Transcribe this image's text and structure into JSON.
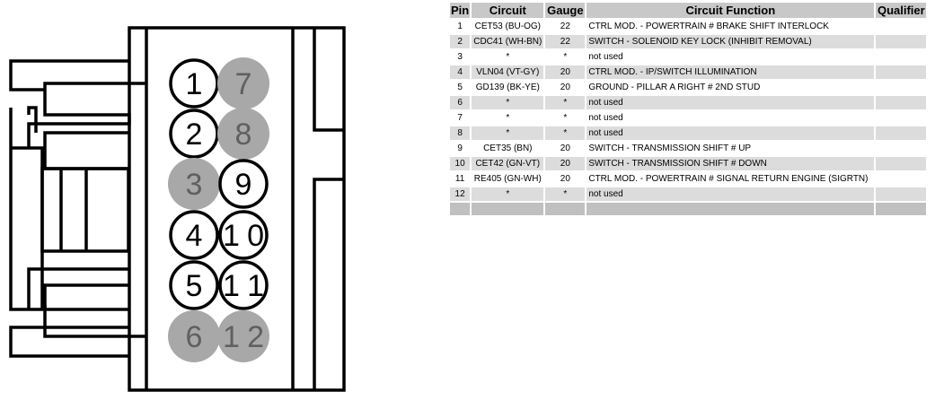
{
  "connector": {
    "pins": [
      {
        "label": "1",
        "used": true
      },
      {
        "label": "2",
        "used": true
      },
      {
        "label": "3",
        "used": false
      },
      {
        "label": "4",
        "used": true
      },
      {
        "label": "5",
        "used": true
      },
      {
        "label": "6",
        "used": false
      },
      {
        "label": "7",
        "used": false
      },
      {
        "label": "8",
        "used": false
      },
      {
        "label": "9",
        "used": true
      },
      {
        "label": "10",
        "used": true
      },
      {
        "label": "11",
        "used": true
      },
      {
        "label": "12",
        "used": false
      }
    ],
    "colors": {
      "used_fill": "#ffffff",
      "unused_fill": "#a8a8a8",
      "unused_text": "#606060",
      "outline": "#000000"
    }
  },
  "table": {
    "headers": {
      "pin": "Pin",
      "circuit": "Circuit",
      "gauge": "Gauge",
      "function": "Circuit Function",
      "qualifier": "Qualifier"
    },
    "rows": [
      {
        "pin": "1",
        "circuit": "CET53 (BU-OG)",
        "gauge": "22",
        "function": "CTRL MOD. - POWERTRAIN # BRAKE SHIFT INTERLOCK",
        "qualifier": ""
      },
      {
        "pin": "2",
        "circuit": "CDC41 (WH-BN)",
        "gauge": "22",
        "function": "SWITCH - SOLENOID KEY LOCK (INHIBIT REMOVAL)",
        "qualifier": ""
      },
      {
        "pin": "3",
        "circuit": "*",
        "gauge": "*",
        "function": "not used",
        "qualifier": ""
      },
      {
        "pin": "4",
        "circuit": "VLN04 (VT-GY)",
        "gauge": "20",
        "function": "CTRL MOD. - IP/SWITCH ILLUMINATION",
        "qualifier": ""
      },
      {
        "pin": "5",
        "circuit": "GD139 (BK-YE)",
        "gauge": "20",
        "function": "GROUND - PILLAR A RIGHT # 2ND STUD",
        "qualifier": ""
      },
      {
        "pin": "6",
        "circuit": "*",
        "gauge": "*",
        "function": "not used",
        "qualifier": ""
      },
      {
        "pin": "7",
        "circuit": "*",
        "gauge": "*",
        "function": "not used",
        "qualifier": ""
      },
      {
        "pin": "8",
        "circuit": "*",
        "gauge": "*",
        "function": "not used",
        "qualifier": ""
      },
      {
        "pin": "9",
        "circuit": "CET35 (BN)",
        "gauge": "20",
        "function": "SWITCH - TRANSMISSION SHIFT # UP",
        "qualifier": ""
      },
      {
        "pin": "10",
        "circuit": "CET42 (GN-VT)",
        "gauge": "20",
        "function": "SWITCH - TRANSMISSION SHIFT # DOWN",
        "qualifier": ""
      },
      {
        "pin": "11",
        "circuit": "RE405 (GN-WH)",
        "gauge": "20",
        "function": "CTRL MOD. - POWERTRAIN # SIGNAL RETURN ENGINE (SIGRTN)",
        "qualifier": ""
      },
      {
        "pin": "12",
        "circuit": "*",
        "gauge": "*",
        "function": "not used",
        "qualifier": ""
      }
    ]
  }
}
